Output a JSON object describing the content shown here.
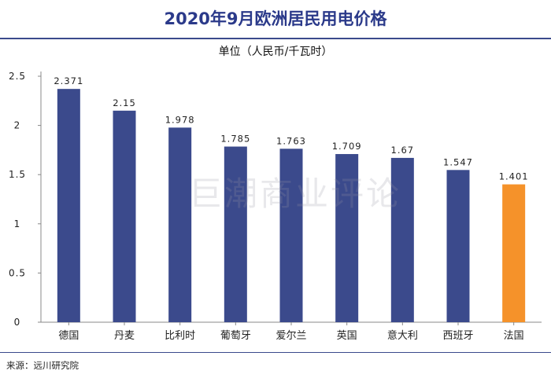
{
  "title": "2020年9月欧洲居民用电价格",
  "source": "来源：远川研究院",
  "watermark": "巨潮商业评论",
  "colors": {
    "title": "#2b3a8a",
    "bar": "#3b4a8c",
    "highlight": "#f5922a"
  },
  "chart_data": {
    "type": "bar",
    "title": "2020年9月欧洲居民用电价格",
    "ylabel": "单位（人民币/千瓦时）",
    "xlabel": "",
    "ylim": [
      0,
      2.5
    ],
    "yticks": [
      "0",
      "0.5",
      "1",
      "1.5",
      "2",
      "2.5"
    ],
    "grid": false,
    "categories": [
      "德国",
      "丹麦",
      "比利时",
      "葡萄牙",
      "爱尔兰",
      "英国",
      "意大利",
      "西班牙",
      "法国"
    ],
    "values": [
      2.371,
      2.15,
      1.978,
      1.785,
      1.763,
      1.709,
      1.67,
      1.547,
      1.401
    ],
    "value_labels": [
      "2.371",
      "2.15",
      "1.978",
      "1.785",
      "1.763",
      "1.709",
      "1.67",
      "1.547",
      "1.401"
    ],
    "highlight_category": "法国"
  }
}
